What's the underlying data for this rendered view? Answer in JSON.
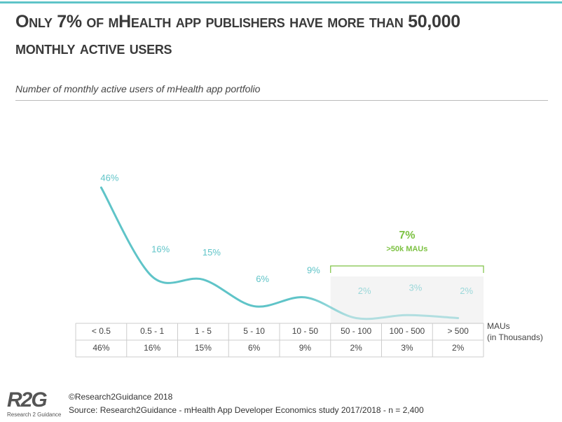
{
  "chart_data": {
    "type": "line",
    "title": "Only 7% of mHealth app publishers have more than 50,000 monthly active users",
    "subtitle": "Number of monthly active users of mHealth app portfolio",
    "categories": [
      "< 0.5",
      "0.5 - 1",
      "1 - 5",
      "5 - 10",
      "10 - 50",
      "50 - 100",
      "100 - 500",
      "> 500"
    ],
    "values": [
      46,
      16,
      15,
      6,
      9,
      2,
      3,
      2
    ],
    "value_labels": [
      "46%",
      "16%",
      "15%",
      "6%",
      "9%",
      "2%",
      "3%",
      "2%"
    ],
    "color": "#5fc4c8",
    "x_label": "MAUs",
    "x_unit": "(in Thousands)",
    "annotation": {
      "value": 7,
      "label": "7%",
      "text": ">50k MAUs",
      "color": "#7dc243"
    },
    "copyright": "©Research2Guidance 2018",
    "source": "Source: Research2Guidance - mHealth App Developer Economics study 2017/2018 - n = 2,400",
    "logo": "R2G",
    "logo_caption": "Research 2 Guidance"
  }
}
